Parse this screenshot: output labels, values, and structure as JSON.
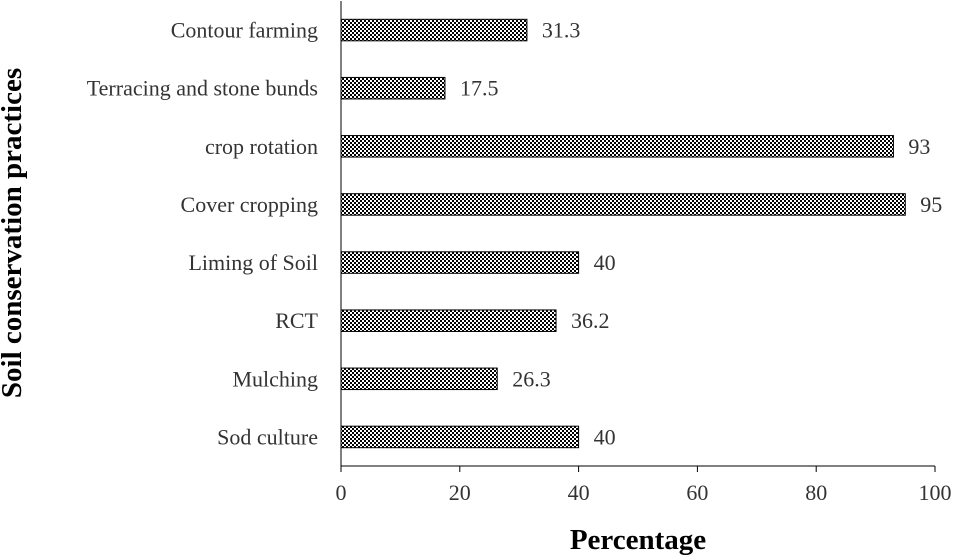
{
  "chart_data": {
    "type": "bar",
    "orientation": "horizontal",
    "title": "",
    "xlabel": "Percentage",
    "ylabel": "Soil conservation practices",
    "categories": [
      "Contour farming",
      "Terracing and stone bunds",
      "crop rotation",
      "Cover cropping",
      "Liming of Soil",
      "RCT",
      "Mulching",
      "Sod culture"
    ],
    "values": [
      31.3,
      17.5,
      93,
      95,
      40,
      36.2,
      26.3,
      40
    ],
    "value_labels": [
      "31.3",
      "17.5",
      "93",
      "95",
      "40",
      "36.2",
      "26.3",
      "40"
    ],
    "xlim": [
      0,
      100
    ],
    "xticks": [
      0,
      20,
      40,
      60,
      80,
      100
    ],
    "xtick_labels": [
      "0",
      "20",
      "40",
      "60",
      "80",
      "100"
    ],
    "grid": false,
    "legend": "none",
    "bar_fill": "#000000",
    "bar_pattern": "checkered"
  }
}
